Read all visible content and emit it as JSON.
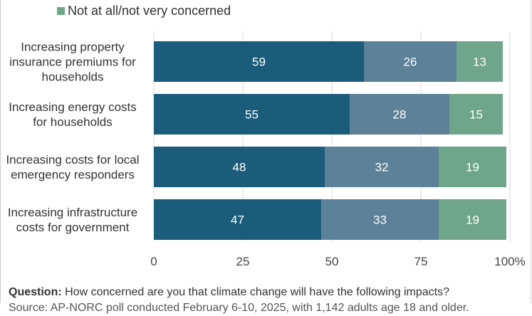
{
  "chart_data": {
    "type": "bar",
    "orientation": "horizontal",
    "stacked": true,
    "categories": [
      [
        "Increasing property",
        "insurance premiums for",
        "households"
      ],
      [
        "Increasing energy costs",
        "for households"
      ],
      [
        "Increasing costs for local",
        "emergency responders"
      ],
      [
        "Increasing infrastructure",
        "costs for government"
      ]
    ],
    "series": [
      {
        "key": "very_somewhat",
        "values": [
          59,
          55,
          48,
          47
        ],
        "color": "#1a5c7a"
      },
      {
        "key": "middle",
        "values": [
          26,
          28,
          32,
          33
        ],
        "color": "#5c8199"
      },
      {
        "name": "Not at all/not very concerned",
        "values": [
          13,
          15,
          19,
          19
        ],
        "color": "#6fa58a"
      }
    ],
    "xlim": [
      0,
      100
    ],
    "xticks": [
      "0",
      "25",
      "50",
      "75",
      "100%"
    ],
    "grid": "vertical",
    "legend_position": "top"
  },
  "legend": {
    "label": "Not at all/not very concerned",
    "color": "#6fa58a"
  },
  "footer": {
    "question_label": "Question:",
    "question_text": "How concerned are you that climate change will have the following impacts?",
    "line2": "Source: AP-NORC poll conducted February 6-10, 2025, with 1,142 adults age 18 and older."
  }
}
